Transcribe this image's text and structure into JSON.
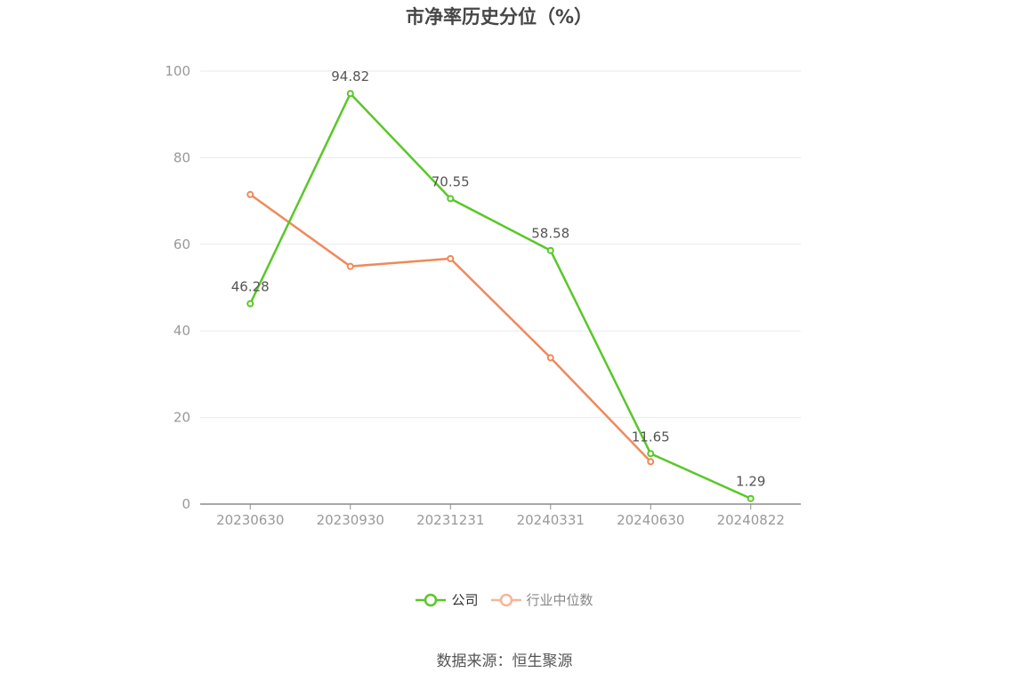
{
  "chart_data": {
    "type": "line",
    "title": "市净率历史分位（%）",
    "categories": [
      "20230630",
      "20230930",
      "20231231",
      "20240331",
      "20240630",
      "20240822"
    ],
    "ylim": [
      0,
      100
    ],
    "yticks": [
      0,
      20,
      40,
      60,
      80,
      100
    ],
    "grid": true,
    "legend_position": "bottom",
    "series": [
      {
        "name": "公司",
        "color": "#5ac729",
        "values": [
          46.28,
          94.82,
          70.55,
          58.58,
          11.65,
          1.29
        ],
        "data_labels": [
          "46.28",
          "94.82",
          "70.55",
          "58.58",
          "11.65",
          "1.29"
        ]
      },
      {
        "name": "行业中位数",
        "color": "#f0895a",
        "legend_color": "#f6b597",
        "values": [
          71.5,
          54.9,
          56.7,
          33.8,
          9.8,
          null
        ]
      }
    ]
  },
  "source": "数据来源：恒生聚源"
}
